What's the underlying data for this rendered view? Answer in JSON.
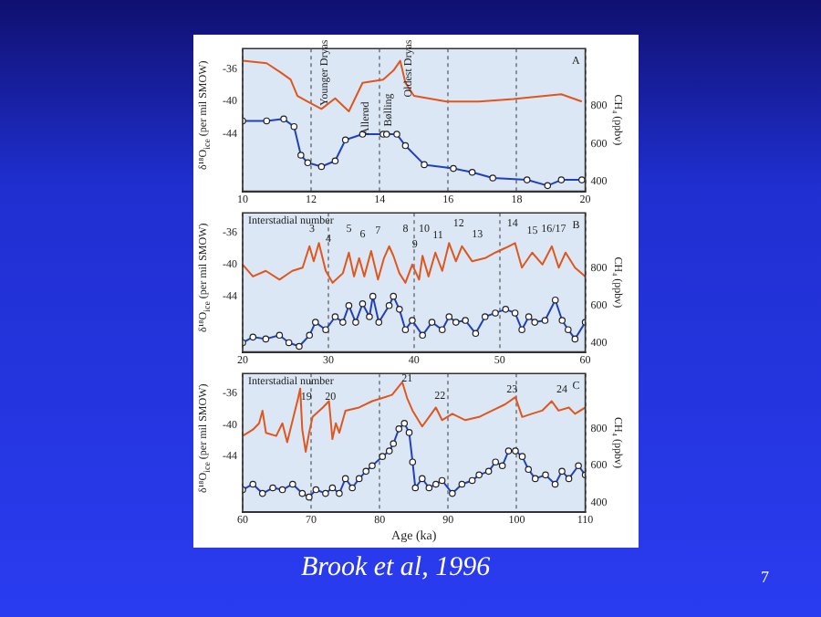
{
  "chart_data": [
    {
      "type": "line",
      "ylabel": "δ¹⁸O$_{ice}$ (per mil SMOW)",
      "y2label": "CH₄ (ppbv)",
      "xlim": [
        10,
        20
      ],
      "xticks": [
        10,
        12,
        14,
        16,
        18,
        20
      ],
      "ylim": [
        -51,
        -33.5
      ],
      "yticks": [
        -36,
        -40,
        -44
      ],
      "y2lim": [
        350,
        1100
      ],
      "y2ticks": [
        400,
        600,
        800
      ],
      "grid": "x",
      "annotations": [
        "A",
        "Younger Dryas",
        "Allerød",
        "Bølling",
        "Oldest Dryas"
      ],
      "series": [
        {
          "type": "line",
          "color": "#e0561c",
          "marker": "none",
          "x": [
            10.0,
            10.7,
            11.1,
            11.4,
            11.6,
            11.9,
            12.3,
            12.7,
            13.1,
            13.5,
            14.1,
            14.4,
            14.6,
            14.75,
            15.0,
            15.95,
            16.9,
            17.9,
            19.3,
            19.9
          ],
          "values": [
            -35,
            -35.3,
            -36.4,
            -37.3,
            -39.3,
            -40,
            -40.9,
            -39.6,
            -41.2,
            -37.7,
            -37.3,
            -36.2,
            -35,
            -37.7,
            -39.3,
            -40,
            -40,
            -39.7,
            -39.1,
            -40
          ]
        },
        {
          "type": "line",
          "axis": "y2",
          "color": "#2040c0",
          "marker": "circle",
          "x": [
            10.0,
            10.7,
            11.2,
            11.5,
            11.7,
            11.9,
            12.3,
            12.7,
            13.0,
            13.5,
            14.1,
            14.2,
            14.5,
            14.75,
            15.3,
            16.15,
            16.7,
            17.3,
            18.3,
            18.9,
            19.3,
            19.9
          ],
          "values": [
            720,
            720,
            730,
            690,
            540,
            500,
            480,
            510,
            620,
            650,
            650,
            650,
            650,
            590,
            490,
            470,
            450,
            420,
            410,
            380,
            410,
            410
          ]
        }
      ]
    },
    {
      "type": "line",
      "ylabel": "δ¹⁸O$_{ice}$ (per mil SMOW)",
      "y2label": "CH₄ (ppbv)",
      "xlim": [
        20,
        60
      ],
      "xticks": [
        20,
        30,
        40,
        50,
        60
      ],
      "ylim": [
        -51,
        -33.5
      ],
      "yticks": [
        -36,
        -40,
        -44
      ],
      "y2lim": [
        350,
        1100
      ],
      "y2ticks": [
        400,
        600,
        800
      ],
      "grid": "x",
      "annotations": [
        "Interstadial number",
        "B",
        "3",
        "4",
        "5",
        "6",
        "7",
        "8",
        "9",
        "10",
        "11",
        "12",
        "13",
        "14",
        "15",
        "16/17"
      ],
      "series": [
        {
          "type": "line",
          "color": "#e0561c",
          "marker": "none",
          "x": [
            20.0,
            21.2,
            22.7,
            24.3,
            25.8,
            27.0,
            27.8,
            28.3,
            28.9,
            29.7,
            30.5,
            31.7,
            32.4,
            33.0,
            33.6,
            34.2,
            35.0,
            35.8,
            36.5,
            37.1,
            37.6,
            38.3,
            39.0,
            39.8,
            40.6,
            41.0,
            41.7,
            42.5,
            43.3,
            44.1,
            44.9,
            45.6,
            46.8,
            48.3,
            49.5,
            50.7,
            51.8,
            52.6,
            53.8,
            55.0,
            56.1,
            56.9,
            57.7,
            58.8,
            60.0
          ],
          "values": [
            -40,
            -41.5,
            -40.8,
            -41.9,
            -40.8,
            -40.4,
            -37.7,
            -39.6,
            -37.3,
            -40.8,
            -42.3,
            -41.1,
            -38.5,
            -41.5,
            -39.2,
            -41.5,
            -38.3,
            -41.9,
            -39.2,
            -37.7,
            -38.9,
            -41.1,
            -42.3,
            -40,
            -41.9,
            -38.9,
            -41.5,
            -38.5,
            -40.8,
            -37.3,
            -39.6,
            -37.7,
            -39.6,
            -39.2,
            -38.5,
            -37.9,
            -37.3,
            -40.4,
            -38.5,
            -40,
            -37.7,
            -40.4,
            -38.5,
            -40.4,
            -41.5
          ]
        },
        {
          "type": "line",
          "axis": "y2",
          "color": "#2040c0",
          "marker": "circle",
          "x": [
            20.0,
            21.2,
            22.7,
            24.3,
            25.4,
            26.6,
            27.8,
            28.5,
            29.7,
            30.8,
            31.7,
            32.4,
            33.2,
            34.0,
            34.8,
            35.2,
            35.9,
            37.1,
            37.6,
            38.3,
            39.0,
            39.8,
            41.0,
            42.1,
            43.3,
            44.1,
            44.9,
            46.0,
            47.2,
            48.3,
            49.5,
            50.7,
            51.8,
            52.6,
            53.4,
            54.1,
            55.3,
            56.5,
            57.3,
            58.0,
            58.8,
            60.0
          ],
          "values": [
            400,
            430,
            420,
            440,
            400,
            380,
            440,
            510,
            470,
            540,
            510,
            600,
            510,
            610,
            540,
            650,
            510,
            600,
            650,
            580,
            470,
            520,
            440,
            510,
            470,
            540,
            510,
            520,
            450,
            540,
            560,
            580,
            560,
            470,
            540,
            510,
            520,
            630,
            520,
            470,
            420,
            510
          ]
        }
      ]
    },
    {
      "type": "line",
      "ylabel": "δ¹⁸O$_{ice}$ (per mil SMOW)",
      "y2label": "CH₄ (ppbv)",
      "xlabel": "Age (ka)",
      "xlim": [
        60,
        110
      ],
      "xticks": [
        60,
        70,
        80,
        90,
        100,
        110
      ],
      "ylim": [
        -51,
        -33.5
      ],
      "yticks": [
        -36,
        -40,
        -44
      ],
      "y2lim": [
        350,
        1100
      ],
      "y2ticks": [
        400,
        600,
        800
      ],
      "grid": "x",
      "annotations": [
        "Interstadial number",
        "C",
        "19",
        "20",
        "21",
        "22",
        "23",
        "24",
        "Brook et al, 1996",
        "7"
      ],
      "series": [
        {
          "type": "line",
          "color": "#e0561c",
          "marker": "none",
          "x": [
            60.0,
            61.5,
            62.4,
            62.9,
            63.4,
            64.9,
            65.8,
            66.5,
            67.3,
            68.1,
            68.4,
            68.7,
            69.2,
            69.7,
            70.2,
            71.7,
            72.6,
            73.1,
            73.6,
            74.1,
            75.0,
            77.0,
            78.9,
            80.4,
            81.8,
            83.3,
            84.0,
            84.8,
            86.2,
            87.2,
            88.2,
            89.1,
            90.6,
            92.5,
            94.5,
            96.4,
            98.3,
            99.8,
            100.8,
            102.2,
            103.7,
            105.1,
            106.1,
            107.6,
            108.5,
            110.0
          ],
          "values": [
            -41.4,
            -40.6,
            -39.8,
            -38.2,
            -41,
            -41.4,
            -39.8,
            -42.2,
            -39.4,
            -36.6,
            -35.4,
            -40.6,
            -43.4,
            -41,
            -39,
            -37.8,
            -37,
            -41.8,
            -39.8,
            -41,
            -38.2,
            -37.8,
            -37,
            -36.6,
            -36.2,
            -34.6,
            -36.6,
            -38.2,
            -40.2,
            -39,
            -37.8,
            -39.4,
            -38.6,
            -39.4,
            -39,
            -38.2,
            -37.4,
            -36.5,
            -39,
            -38.6,
            -38.2,
            -37,
            -38.2,
            -37.8,
            -38.6,
            -37.8
          ]
        },
        {
          "type": "line",
          "axis": "y2",
          "color": "#2040c0",
          "marker": "circle",
          "x": [
            60.0,
            61.5,
            62.9,
            64.4,
            65.8,
            67.3,
            68.7,
            69.7,
            70.7,
            72.1,
            73.1,
            74.1,
            75.0,
            76.0,
            77.0,
            78.0,
            78.9,
            80.4,
            81.4,
            82.0,
            82.8,
            83.6,
            84.3,
            84.8,
            85.2,
            86.2,
            87.2,
            88.2,
            89.1,
            90.6,
            92.0,
            93.5,
            94.5,
            95.9,
            96.9,
            97.9,
            98.8,
            99.8,
            100.8,
            101.7,
            102.7,
            104.2,
            105.6,
            106.6,
            107.6,
            109.0,
            110.0
          ],
          "values": [
            470,
            500,
            450,
            480,
            470,
            500,
            450,
            430,
            470,
            450,
            480,
            450,
            530,
            480,
            530,
            570,
            600,
            650,
            680,
            720,
            800,
            830,
            780,
            620,
            480,
            530,
            480,
            500,
            520,
            450,
            500,
            520,
            550,
            570,
            620,
            600,
            680,
            680,
            650,
            580,
            530,
            550,
            500,
            570,
            530,
            600,
            550
          ]
        }
      ]
    }
  ]
}
